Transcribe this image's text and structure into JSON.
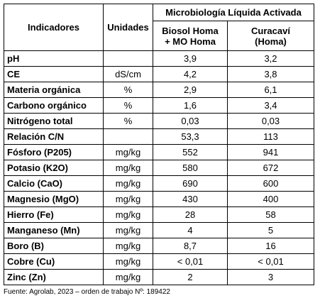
{
  "table": {
    "header": {
      "indicadores": "Indicadores",
      "unidades": "Unidades",
      "group": "Microbiología Líquida Activada",
      "col1": [
        "Biosol Homa",
        "+ MO Homa"
      ],
      "col2": [
        "Curacaví",
        "(Homa)"
      ]
    },
    "rows": [
      [
        "pH",
        null,
        "3,9",
        "3,2"
      ],
      [
        "CE",
        "dS/cm",
        "4,2",
        "3,8"
      ],
      [
        "Materia orgánica",
        "%",
        "2,9",
        "6,1"
      ],
      [
        "Carbono orgánico",
        "%",
        "1,6",
        "3,4"
      ],
      [
        "Nitrógeno total",
        "%",
        "0,03",
        "0,03"
      ],
      [
        "Relación C/N",
        null,
        "53,3",
        "113"
      ],
      [
        "Fósforo (P205)",
        "mg/kg",
        "552",
        "941"
      ],
      [
        "Potasio (K2O)",
        "mg/kg",
        "580",
        "672"
      ],
      [
        "Calcio (CaO)",
        "mg/kg",
        "690",
        "600"
      ],
      [
        "Magnesio (MgO)",
        "mg/kg",
        "430",
        "400"
      ],
      [
        "Hierro (Fe)",
        "mg/kg",
        "28",
        "58"
      ],
      [
        "Manganeso (Mn)",
        "mg/kg",
        "4",
        "5"
      ],
      [
        "Boro (B)",
        "mg/kg",
        "8,7",
        "16"
      ],
      [
        "Cobre (Cu)",
        "mg/kg",
        "< 0,01",
        "< 0,01"
      ],
      [
        "Zinc (Zn)",
        "mg/kg",
        "2",
        "3"
      ]
    ],
    "source": "Fuente: Agrolab, 2023 – orden de trabajo Nº: 189422"
  }
}
